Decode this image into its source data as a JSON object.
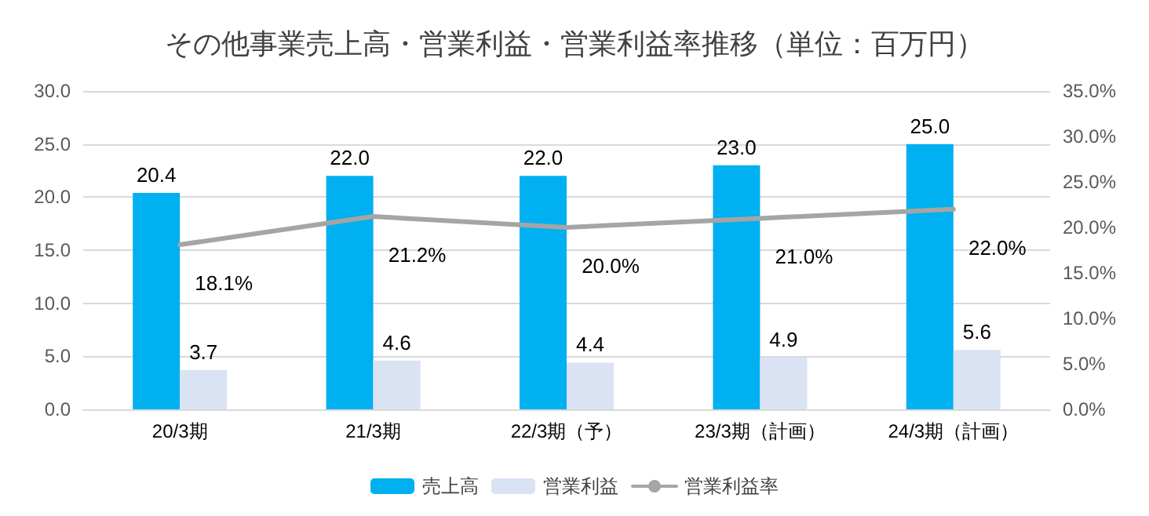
{
  "chart_data": {
    "type": "bar",
    "title": "その他事業売上高・営業利益・営業利益率推移（単位：百万円）",
    "categories": [
      "20/3期",
      "21/3期",
      "22/3期（予）",
      "23/3期（計画）",
      "24/3期（計画）"
    ],
    "series": [
      {
        "name": "売上高",
        "color": "#00b0f0",
        "values": [
          20.4,
          22.0,
          22.0,
          23.0,
          25.0
        ],
        "value_labels": [
          "20.4",
          "22.0",
          "22.0",
          "23.0",
          "25.0"
        ]
      },
      {
        "name": "営業利益",
        "color": "#dae3f3",
        "values": [
          3.7,
          4.6,
          4.4,
          4.9,
          5.6
        ],
        "value_labels": [
          "3.7",
          "4.6",
          "4.4",
          "4.9",
          "5.6"
        ]
      },
      {
        "name": "営業利益率",
        "type": "line",
        "axis": "y2",
        "color": "#a5a5a5",
        "values": [
          18.1,
          21.2,
          20.0,
          21.0,
          22.0
        ],
        "value_labels": [
          "18.1%",
          "21.2%",
          "20.0%",
          "21.0%",
          "22.0%"
        ]
      }
    ],
    "ylim": [
      0,
      30
    ],
    "yticks": [
      {
        "value": 0,
        "label": "0.0"
      },
      {
        "value": 5,
        "label": "5.0"
      },
      {
        "value": 10,
        "label": "10.0"
      },
      {
        "value": 15,
        "label": "15.0"
      },
      {
        "value": 20,
        "label": "20.0"
      },
      {
        "value": 25,
        "label": "25.0"
      },
      {
        "value": 30,
        "label": "30.0"
      }
    ],
    "y2lim": [
      0,
      35
    ],
    "y2ticks": [
      {
        "value": 0,
        "label": "0.0%"
      },
      {
        "value": 5,
        "label": "5.0%"
      },
      {
        "value": 10,
        "label": "10.0%"
      },
      {
        "value": 15,
        "label": "15.0%"
      },
      {
        "value": 20,
        "label": "20.0%"
      },
      {
        "value": 25,
        "label": "25.0%"
      },
      {
        "value": 30,
        "label": "30.0%"
      },
      {
        "value": 35,
        "label": "35.0%"
      }
    ],
    "grid": "y",
    "legend": "bottom",
    "marker": "none",
    "line_style": "solid"
  }
}
